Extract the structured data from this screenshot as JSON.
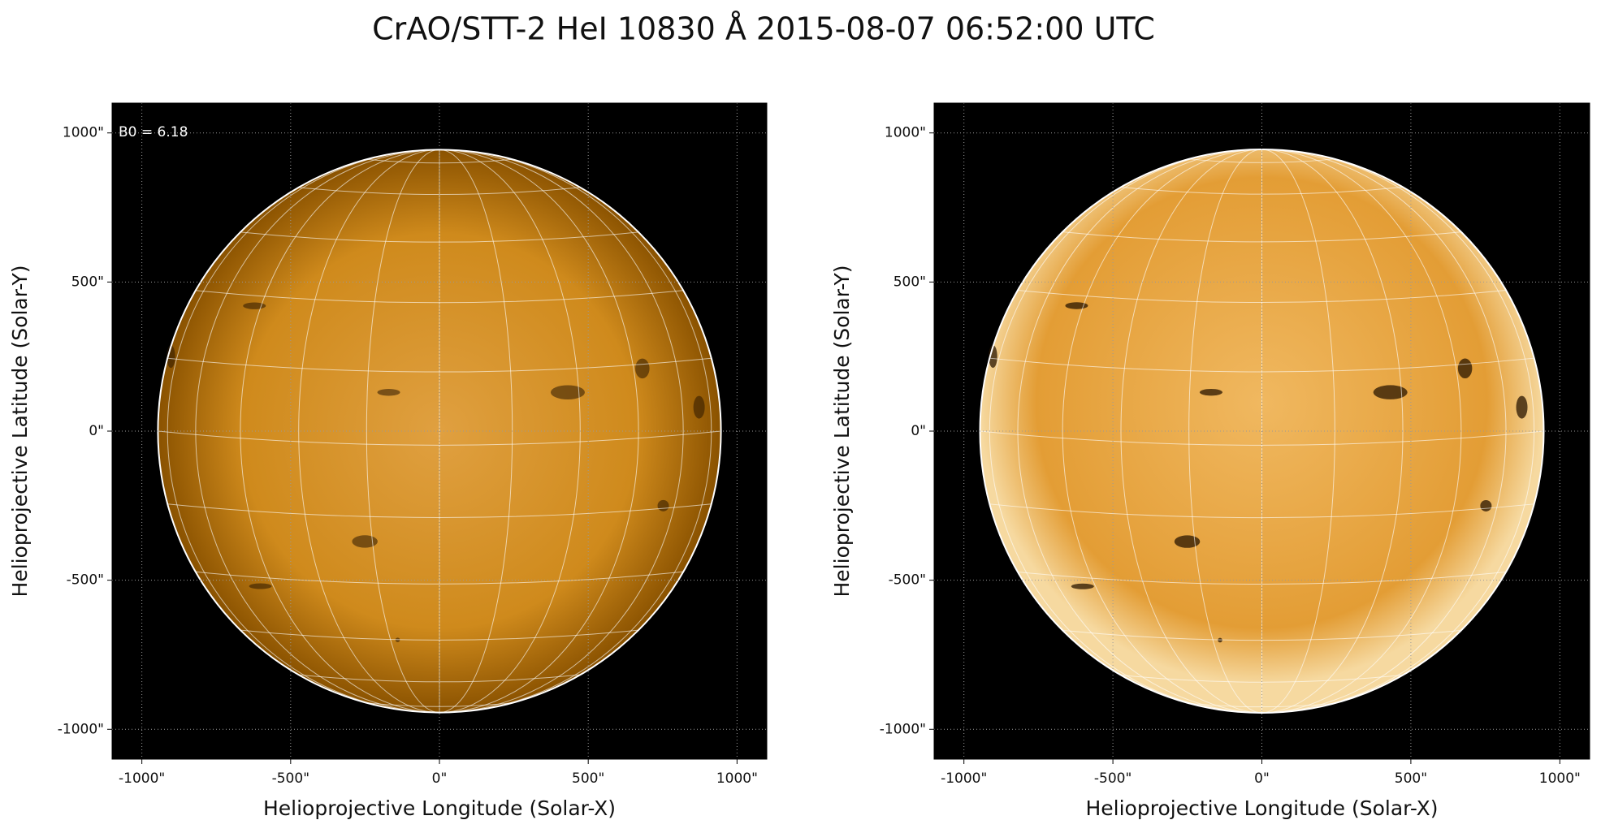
{
  "title": "CrAO/STT-2 HeI 10830 Å 2015-08-07 06:52:00 UTC",
  "chart_data": [
    {
      "type": "image",
      "annotation": "B0 = 6.18",
      "xlabel": "Helioprojective Longitude (Solar-X)",
      "ylabel": "Helioprojective Latitude (Solar-Y)",
      "xlim": [
        -1100,
        1100
      ],
      "ylim": [
        -1100,
        1100
      ],
      "xticks": [
        {
          "value": -1000,
          "label": "-1000\""
        },
        {
          "value": -500,
          "label": "-500\""
        },
        {
          "value": 0,
          "label": "0\""
        },
        {
          "value": 500,
          "label": "500\""
        },
        {
          "value": 1000,
          "label": "1000\""
        }
      ],
      "yticks": [
        {
          "value": -1000,
          "label": "-1000\""
        },
        {
          "value": -500,
          "label": "-500\""
        },
        {
          "value": 0,
          "label": "0\""
        },
        {
          "value": 500,
          "label": "500\""
        },
        {
          "value": 1000,
          "label": "1000\""
        }
      ],
      "grid": true
    },
    {
      "type": "image",
      "xlabel": "Helioprojective Longitude (Solar-X)",
      "ylabel": "Helioprojective Latitude (Solar-Y)",
      "xlim": [
        -1100,
        1100
      ],
      "ylim": [
        -1100,
        1100
      ],
      "xticks": [
        {
          "value": -1000,
          "label": "-1000\""
        },
        {
          "value": -500,
          "label": "-500\""
        },
        {
          "value": 0,
          "label": "0\""
        },
        {
          "value": 500,
          "label": "500\""
        },
        {
          "value": 1000,
          "label": "1000\""
        }
      ],
      "yticks": [
        {
          "value": -1000,
          "label": "-1000\""
        },
        {
          "value": -500,
          "label": "-500\""
        },
        {
          "value": 0,
          "label": "0\""
        },
        {
          "value": 500,
          "label": "500\""
        },
        {
          "value": 1000,
          "label": "1000\""
        }
      ],
      "grid": true
    }
  ]
}
